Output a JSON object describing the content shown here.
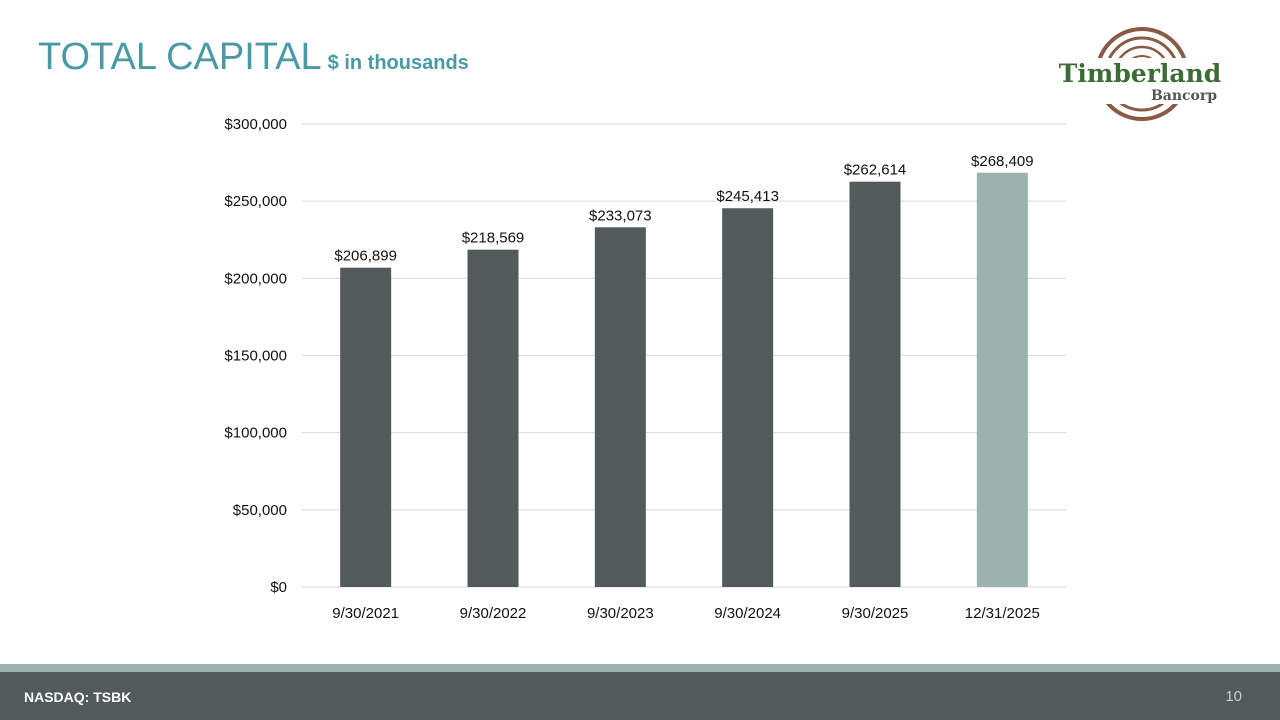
{
  "header": {
    "title": "TOTAL CAPITAL",
    "subtitle": "$ in thousands"
  },
  "logo": {
    "name": "Timberland",
    "sub": "Bancorp",
    "ring_color": "#8a5a44",
    "text_color": "#3d6b35"
  },
  "footer": {
    "ticker": "NASDAQ: TSBK",
    "page_number": "10"
  },
  "colors": {
    "bar": "#525a5c",
    "bar_highlight": "#9bb2ad",
    "grid": "#d9d9d9"
  },
  "chart_data": {
    "type": "bar",
    "title": "",
    "xlabel": "",
    "ylabel": "",
    "categories": [
      "9/30/2021",
      "9/30/2022",
      "9/30/2023",
      "9/30/2024",
      "9/30/2025",
      "12/31/2025"
    ],
    "values": [
      206899,
      218569,
      233073,
      245413,
      262614,
      268409
    ],
    "data_labels": [
      "$206,899",
      "$218,569",
      "$233,073",
      "$245,413",
      "$262,614",
      "$268,409"
    ],
    "highlight_index": 5,
    "ylim": [
      0,
      300000
    ],
    "yticks": [
      0,
      50000,
      100000,
      150000,
      200000,
      250000,
      300000
    ],
    "ytick_labels": [
      "$0",
      "$50,000",
      "$100,000",
      "$150,000",
      "$200,000",
      "$250,000",
      "$300,000"
    ],
    "grid": true,
    "legend": "none"
  }
}
